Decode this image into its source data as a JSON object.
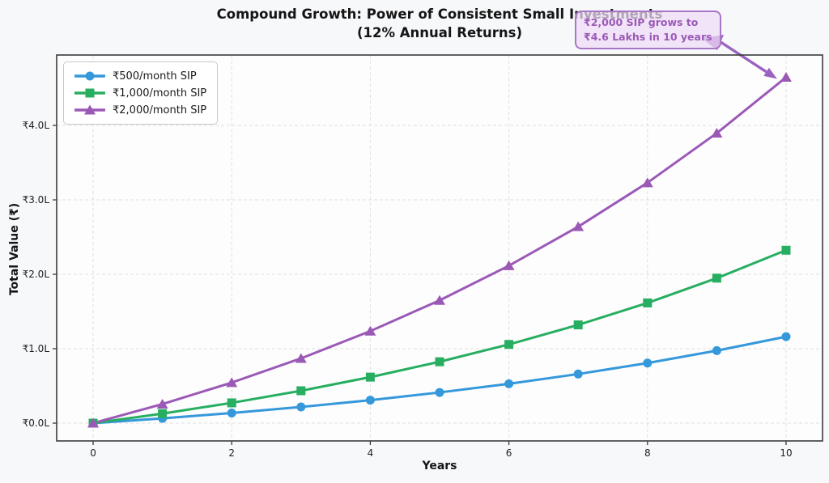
{
  "title": {
    "line1": "Compound Growth: Power of Consistent Small Investments",
    "line2": "(12% Annual Returns)"
  },
  "annotation": {
    "line1": "₹2,000 SIP grows to",
    "line2": "₹4.6 Lakhs in 10 years"
  },
  "chart_data": {
    "type": "line",
    "x": [
      0,
      1,
      2,
      3,
      4,
      5,
      6,
      7,
      8,
      9,
      10
    ],
    "series": [
      {
        "name": "₹500/month SIP",
        "color": "#3498db",
        "marker": "circle",
        "values": [
          0,
          6405,
          13622,
          21754,
          30917,
          41243,
          52879,
          65990,
          80763,
          97411,
          116170
        ]
      },
      {
        "name": "₹1,000/month SIP",
        "color": "#27ae60",
        "marker": "square",
        "values": [
          0,
          12809,
          27243,
          43508,
          61835,
          82486,
          105757,
          131979,
          161527,
          194822,
          232339
        ]
      },
      {
        "name": "₹2,000/month SIP",
        "color": "#9b59b6",
        "marker": "triangle",
        "values": [
          0,
          25618,
          54486,
          87015,
          123670,
          164973,
          211514,
          263958,
          323053,
          389644,
          464678
        ]
      }
    ],
    "xlabel": "Years",
    "ylabel": "Total Value (₹)",
    "xticks": [
      0,
      2,
      4,
      6,
      8,
      10
    ],
    "xtick_labels": [
      "0",
      "2",
      "4",
      "6",
      "8",
      "10"
    ],
    "ytick_values": [
      0,
      100000,
      200000,
      300000,
      400000
    ],
    "ytick_labels": [
      "₹0.0L",
      "₹1.0L",
      "₹2.0L",
      "₹3.0L",
      "₹4.0L"
    ],
    "xlim": [
      -0.526,
      10.526
    ],
    "ylim": [
      -23900,
      494600
    ],
    "grid": true,
    "legend_position": "upper left",
    "annotation_target": {
      "x": 10,
      "series_index": 2
    }
  },
  "colors": {
    "figure_background": "#f7f8fa",
    "plot_background": "#fdfdfe",
    "grid": "#e0e0e0",
    "spine": "#3b3b3b",
    "tick_label": "#1f1f1f",
    "annotation_background": "rgba(238,221,246,0.72)",
    "annotation_border": "#a876c8",
    "annotation_text": "#9b59b6",
    "arrow": "#9b63c1"
  }
}
